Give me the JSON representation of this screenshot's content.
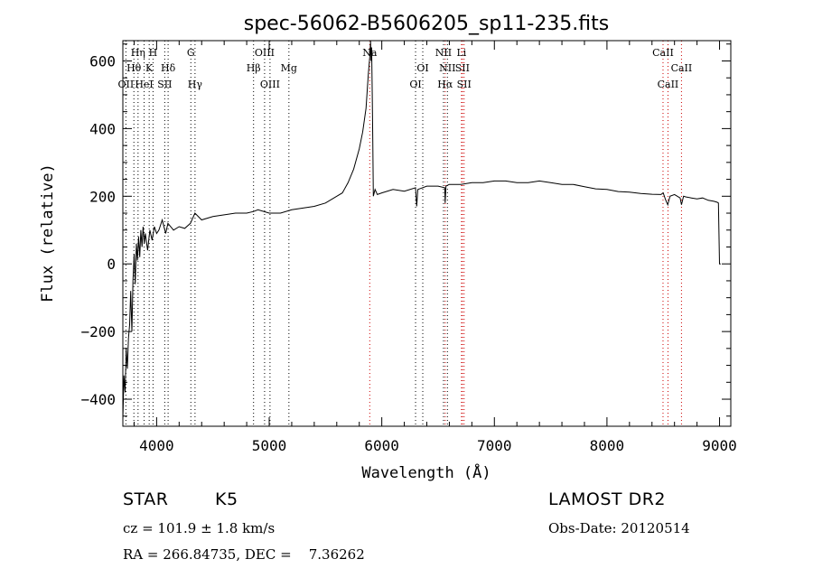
{
  "chart_data": {
    "type": "line",
    "title": "spec-56062-B5606205_sp11-235.fits",
    "xlabel": "Wavelength (Å)",
    "ylabel": "Flux (relative)",
    "xlim": [
      3700,
      9100
    ],
    "ylim": [
      -480,
      660
    ],
    "x_ticks": [
      4000,
      5000,
      6000,
      7000,
      8000,
      9000
    ],
    "y_ticks": [
      -400,
      -200,
      0,
      200,
      400,
      600
    ],
    "grid": false,
    "series": [
      {
        "x": [
          3700,
          3710,
          3720,
          3730,
          3740,
          3750,
          3760,
          3770,
          3780,
          3790,
          3800,
          3810,
          3820,
          3830,
          3840,
          3850,
          3860,
          3870,
          3880,
          3890,
          3900,
          3920,
          3940,
          3960,
          3980,
          4000,
          4020,
          4050,
          4080,
          4100,
          4150,
          4200,
          4250,
          4300,
          4340,
          4400,
          4500,
          4600,
          4700,
          4800,
          4861,
          4900,
          5000,
          5100,
          5200,
          5300,
          5400,
          5500,
          5600,
          5650,
          5700,
          5750,
          5800,
          5830,
          5860,
          5880,
          5895,
          5900,
          5905,
          5910,
          5915,
          5920,
          5925,
          5940,
          5960,
          6000,
          6100,
          6200,
          6300,
          6310,
          6320,
          6400,
          6500,
          6560,
          6563,
          6570,
          6600,
          6700,
          6800,
          6900,
          7000,
          7100,
          7200,
          7300,
          7400,
          7500,
          7600,
          7700,
          7800,
          7900,
          8000,
          8100,
          8200,
          8300,
          8400,
          8480,
          8500,
          8520,
          8540,
          8560,
          8600,
          8650,
          8662,
          8680,
          8700,
          8750,
          8800,
          8850,
          8900,
          8950,
          8980,
          8990,
          9000,
          9010
        ],
        "y": [
          -460,
          -330,
          -380,
          -250,
          -310,
          -220,
          -180,
          -80,
          -200,
          -50,
          30,
          -60,
          60,
          10,
          80,
          20,
          100,
          50,
          110,
          60,
          90,
          40,
          100,
          70,
          110,
          90,
          100,
          130,
          90,
          120,
          100,
          110,
          105,
          120,
          150,
          130,
          140,
          145,
          150,
          150,
          155,
          160,
          150,
          150,
          160,
          165,
          170,
          180,
          200,
          210,
          240,
          280,
          340,
          390,
          460,
          560,
          620,
          660,
          600,
          640,
          500,
          360,
          200,
          220,
          205,
          210,
          220,
          215,
          225,
          170,
          220,
          230,
          230,
          225,
          180,
          230,
          235,
          235,
          240,
          240,
          245,
          245,
          240,
          240,
          245,
          240,
          235,
          235,
          228,
          222,
          220,
          214,
          212,
          208,
          206,
          205,
          210,
          190,
          175,
          200,
          205,
          195,
          175,
          200,
          198,
          195,
          192,
          195,
          188,
          185,
          182,
          180,
          0,
          0
        ]
      }
    ],
    "line_markers": [
      {
        "label": "OII",
        "x": 3727,
        "color": "#000000",
        "row": 3
      },
      {
        "label": "Hθ",
        "x": 3798,
        "color": "#000000",
        "row": 2
      },
      {
        "label": "Hη",
        "x": 3835,
        "color": "#000000",
        "row": 1
      },
      {
        "label": "HeI",
        "x": 3889,
        "color": "#000000",
        "row": 3
      },
      {
        "label": "K",
        "x": 3934,
        "color": "#000000",
        "row": 2
      },
      {
        "label": "H",
        "x": 3968,
        "color": "#000000",
        "row": 1
      },
      {
        "label": "SII",
        "x": 4072,
        "color": "#000000",
        "row": 3
      },
      {
        "label": "Hδ",
        "x": 4102,
        "color": "#000000",
        "row": 2
      },
      {
        "label": "G",
        "x": 4304,
        "color": "#000000",
        "row": 1
      },
      {
        "label": "Hγ",
        "x": 4341,
        "color": "#000000",
        "row": 3
      },
      {
        "label": "Hβ",
        "x": 4861,
        "color": "#000000",
        "row": 2
      },
      {
        "label": "OIII",
        "x": 4959,
        "color": "#000000",
        "row": 1
      },
      {
        "label": "OIII",
        "x": 5007,
        "color": "#000000",
        "row": 3
      },
      {
        "label": "Mg",
        "x": 5175,
        "color": "#000000",
        "row": 2
      },
      {
        "label": "Na",
        "x": 5893,
        "color": "#cc0000",
        "row": 1
      },
      {
        "label": "OI",
        "x": 6300,
        "color": "#000000",
        "row": 3
      },
      {
        "label": "OI",
        "x": 6364,
        "color": "#000000",
        "row": 2
      },
      {
        "label": "NII",
        "x": 6548,
        "color": "#000000",
        "row": 1
      },
      {
        "label": "Hα",
        "x": 6563,
        "color": "#cc0000",
        "row": 3
      },
      {
        "label": "NII",
        "x": 6583,
        "color": "#000000",
        "row": 2
      },
      {
        "label": "Li",
        "x": 6708,
        "color": "#cc0000",
        "row": 1
      },
      {
        "label": "SII",
        "x": 6716,
        "color": "#cc0000",
        "row": 2
      },
      {
        "label": "SII",
        "x": 6731,
        "color": "#cc0000",
        "row": 3
      },
      {
        "label": "CaII",
        "x": 8498,
        "color": "#cc0000",
        "row": 1
      },
      {
        "label": "CaII",
        "x": 8542,
        "color": "#cc0000",
        "row": 3
      },
      {
        "label": "CaII",
        "x": 8662,
        "color": "#cc0000",
        "row": 2
      }
    ]
  },
  "info": {
    "class": "STAR",
    "subclass": "K5",
    "survey": "LAMOST DR2",
    "cz": "cz = 101.9 ± 1.8 km/s",
    "obs_date": "Obs-Date: 20120514",
    "coords": "RA = 266.84735, DEC =    7.36262"
  }
}
